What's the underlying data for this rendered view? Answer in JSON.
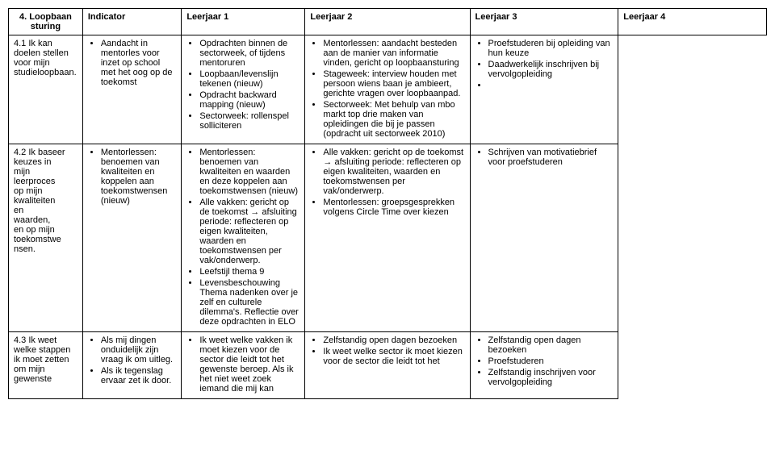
{
  "headers": {
    "cat": "4. Loopbaan sturing",
    "col1": "Indicator",
    "col2": "Leerjaar 1",
    "col3": "Leerjaar 2",
    "col4": "Leerjaar 3",
    "col5": "Leerjaar 4"
  },
  "rows": [
    {
      "indicator": "4.1 Ik kan doelen stellen voor mijn studieloopbaan.",
      "l1": [
        "Aandacht in mentorles voor inzet op school met het oog op de toekomst"
      ],
      "l2": [
        "Opdrachten binnen de sectorweek, of tijdens mentoruren",
        "Loopbaan/levenslijn tekenen (nieuw)",
        "Opdracht backward mapping (nieuw)",
        "Sectorweek: rollenspel solliciteren"
      ],
      "l3": [
        "Mentorlessen: aandacht besteden aan de manier van informatie vinden, gericht op loopbaansturing",
        "Stageweek: interview houden met persoon wiens baan je ambieert, gerichte vragen over loopbaanpad.",
        "Sectorweek: Met behulp van mbo markt top drie maken van opleidingen die bij je passen (opdracht uit sectorweek 2010)"
      ],
      "l4": [
        "Proefstuderen bij opleiding van hun keuze",
        "Daadwerkelijk inschrijven bij vervolgopleiding",
        ""
      ]
    },
    {
      "indicator": "4.2 Ik baseer keuzes in mijn leerproces op mijn kwaliteiten en waarden, en op mijn toekomstwe nsen.",
      "l1": [
        "Mentorlessen: benoemen van kwaliteiten en koppelen aan toekomstwensen (nieuw)"
      ],
      "l2": [
        "Mentorlessen: benoemen van kwaliteiten en waarden en deze koppelen aan toekomstwensen (nieuw)",
        "Alle vakken: gericht op de toekomst → afsluiting periode: reflecteren op eigen kwaliteiten, waarden en toekomstwensen per vak/onderwerp.",
        "Leefstijl thema 9",
        "Levensbeschouwing Thema nadenken over je zelf en culturele dilemma's. Reflectie over deze opdrachten in ELO"
      ],
      "l3": [
        "Alle vakken: gericht op de toekomst → afsluiting periode: reflecteren op eigen kwaliteiten, waarden en toekomstwensen per vak/onderwerp.",
        "Mentorlessen: groepsgesprekken volgens Circle Time over kiezen"
      ],
      "l4": [
        "Schrijven van motivatiebrief voor proefstuderen"
      ]
    },
    {
      "indicator": "4.3 Ik weet welke stappen ik moet zetten om mijn gewenste",
      "l1": [
        "Als mij dingen onduidelijk zijn vraag ik om uitleg.",
        "Als ik tegenslag ervaar zet ik door."
      ],
      "l2": [
        "Ik weet welke vakken ik moet kiezen voor de sector die leidt tot het gewenste beroep. Als ik het niet weet zoek iemand die mij kan"
      ],
      "l3": [
        "Zelfstandig open dagen bezoeken",
        "Ik weet welke sector ik moet kiezen voor de sector die leidt tot het"
      ],
      "l4": [
        "Zelfstandig open dagen bezoeken",
        "Proefstuderen",
        "Zelfstandig inschrijven voor vervolgopleiding"
      ]
    }
  ]
}
